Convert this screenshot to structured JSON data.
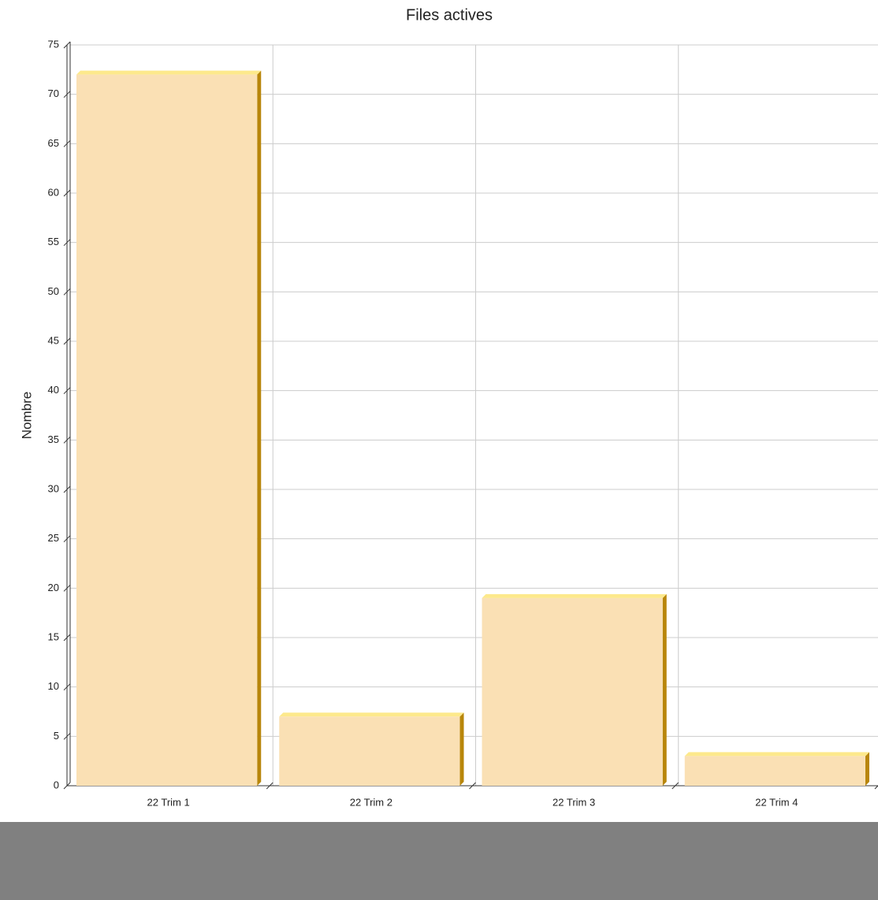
{
  "chart_data": {
    "type": "bar",
    "title": "Files actives",
    "y_label": "Nombre",
    "categories": [
      "22 Trim 1",
      "22 Trim 2",
      "22 Trim 3",
      "22 Trim 4"
    ],
    "values": [
      72,
      7,
      19,
      3
    ],
    "color": "#fae0b4",
    "ylim": [
      0,
      75
    ],
    "yticks": [
      0,
      5,
      10,
      15,
      20,
      25,
      30,
      35,
      40,
      45,
      50,
      55,
      60,
      65,
      70,
      75
    ],
    "grid": true
  }
}
